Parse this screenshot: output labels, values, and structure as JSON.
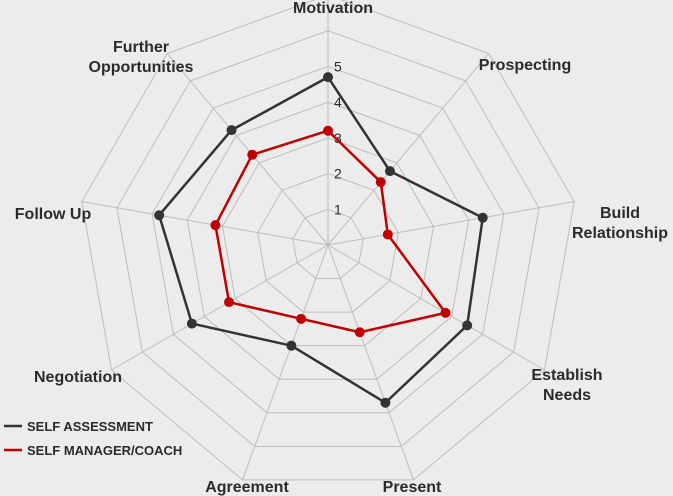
{
  "chart_data": {
    "type": "radar",
    "title": "",
    "axes": [
      "Motivation",
      "Prospecting",
      "Build Relationship",
      "Establish Needs",
      "Present",
      "Agreement",
      "Negotiation",
      "Follow Up",
      "Further Opportunities"
    ],
    "ticks": [
      1,
      2,
      3,
      4,
      5
    ],
    "rlim": [
      0,
      5
    ],
    "grid": true,
    "legend": "bottom-left",
    "series": [
      {
        "name": "SELF ASSESSMENT",
        "color": "#333333",
        "values": [
          4.7,
          2.7,
          4.4,
          4.5,
          4.7,
          3.0,
          4.4,
          4.8,
          4.2
        ]
      },
      {
        "name": "SELF MANAGER/COACH",
        "color": "#c00000",
        "values": [
          3.2,
          2.3,
          1.7,
          3.8,
          2.6,
          2.2,
          3.2,
          3.2,
          3.3
        ]
      }
    ]
  }
}
